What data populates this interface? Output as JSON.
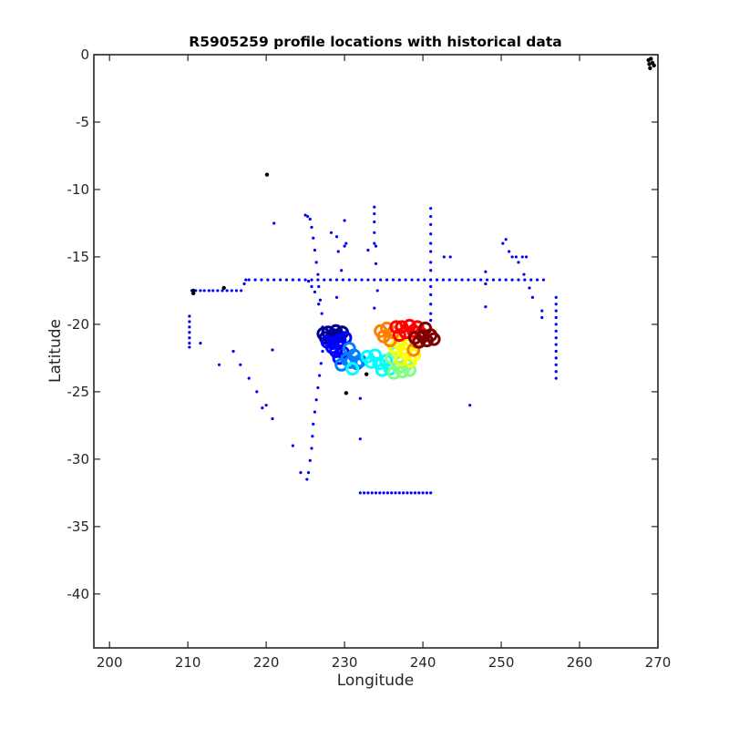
{
  "chart_data": {
    "type": "scatter",
    "title": "R5905259 profile locations with historical data",
    "xlabel": "Longitude",
    "ylabel": "Latitude",
    "xlim": [
      198,
      270
    ],
    "ylim": [
      -44,
      0
    ],
    "xticks": [
      200,
      210,
      220,
      230,
      240,
      250,
      260,
      270
    ],
    "yticks": [
      0,
      -5,
      -10,
      -15,
      -20,
      -25,
      -30,
      -35,
      -40
    ],
    "grid": false,
    "colors": {
      "historical": "#0000ff",
      "other": "#000000",
      "track_colormap": [
        "#00008f",
        "#0000ff",
        "#0080ff",
        "#00ffff",
        "#80ff80",
        "#ffff00",
        "#ff8000",
        "#ff0000",
        "#800000"
      ]
    },
    "series": [
      {
        "points": [
          [
            210.5,
            -17.5
          ],
          [
            211.0,
            -17.5
          ],
          [
            211.6,
            -17.5
          ],
          [
            212.1,
            -17.5
          ],
          [
            212.7,
            -17.5
          ],
          [
            213.2,
            -17.5
          ],
          [
            213.8,
            -17.5
          ],
          [
            214.4,
            -17.5
          ],
          [
            215.0,
            -17.5
          ],
          [
            215.6,
            -17.5
          ],
          [
            216.2,
            -17.5
          ],
          [
            216.8,
            -17.5
          ],
          [
            217.2,
            -17.0
          ],
          [
            217.4,
            -16.7
          ],
          [
            217.8,
            -16.7
          ],
          [
            218.6,
            -16.7
          ],
          [
            219.4,
            -16.7
          ],
          [
            220.2,
            -16.7
          ],
          [
            221.0,
            -16.7
          ],
          [
            221.8,
            -16.7
          ],
          [
            222.6,
            -16.7
          ],
          [
            223.4,
            -16.7
          ],
          [
            224.2,
            -16.7
          ],
          [
            225.0,
            -16.7
          ],
          [
            225.8,
            -16.7
          ],
          [
            226.6,
            -16.7
          ],
          [
            227.4,
            -16.7
          ],
          [
            228.2,
            -16.7
          ],
          [
            229.0,
            -16.7
          ],
          [
            229.8,
            -16.7
          ],
          [
            230.6,
            -16.7
          ],
          [
            231.4,
            -16.7
          ],
          [
            232.2,
            -16.7
          ],
          [
            233.0,
            -16.7
          ],
          [
            233.8,
            -16.7
          ],
          [
            234.6,
            -16.7
          ],
          [
            235.4,
            -16.7
          ],
          [
            236.2,
            -16.7
          ],
          [
            237.0,
            -16.7
          ],
          [
            237.8,
            -16.7
          ],
          [
            238.6,
            -16.7
          ],
          [
            239.4,
            -16.7
          ],
          [
            240.2,
            -16.7
          ],
          [
            241.0,
            -16.7
          ],
          [
            241.8,
            -16.7
          ],
          [
            242.6,
            -16.7
          ],
          [
            243.4,
            -16.7
          ],
          [
            244.2,
            -16.7
          ],
          [
            245.0,
            -16.7
          ],
          [
            245.8,
            -16.7
          ],
          [
            246.6,
            -16.7
          ],
          [
            247.4,
            -16.7
          ],
          [
            248.2,
            -16.7
          ],
          [
            249.0,
            -16.7
          ],
          [
            249.8,
            -16.7
          ],
          [
            250.6,
            -16.7
          ],
          [
            251.4,
            -16.7
          ],
          [
            252.2,
            -16.7
          ],
          [
            253.0,
            -16.7
          ],
          [
            253.8,
            -16.7
          ],
          [
            254.6,
            -16.7
          ],
          [
            255.4,
            -16.7
          ],
          [
            225.0,
            -11.9
          ],
          [
            225.3,
            -12.0
          ],
          [
            225.6,
            -12.2
          ],
          [
            225.8,
            -12.8
          ],
          [
            226.0,
            -13.6
          ],
          [
            226.2,
            -14.5
          ],
          [
            226.4,
            -15.4
          ],
          [
            226.6,
            -16.3
          ],
          [
            226.7,
            -17.2
          ],
          [
            226.9,
            -18.2
          ],
          [
            227.1,
            -19.2
          ],
          [
            227.2,
            -20.2
          ],
          [
            227.3,
            -21.1
          ],
          [
            227.2,
            -22.0
          ],
          [
            227.0,
            -22.9
          ],
          [
            226.8,
            -23.8
          ],
          [
            226.6,
            -24.7
          ],
          [
            226.4,
            -25.6
          ],
          [
            226.2,
            -26.5
          ],
          [
            226.0,
            -27.4
          ],
          [
            225.9,
            -28.3
          ],
          [
            225.8,
            -29.2
          ],
          [
            225.6,
            -30.1
          ],
          [
            225.4,
            -31.0
          ],
          [
            225.2,
            -31.5
          ],
          [
            225.4,
            -16.8
          ],
          [
            225.8,
            -17.2
          ],
          [
            226.2,
            -17.6
          ],
          [
            226.7,
            -18.5
          ],
          [
            210.2,
            -19.4
          ],
          [
            210.2,
            -19.8
          ],
          [
            210.2,
            -20.2
          ],
          [
            210.2,
            -20.6
          ],
          [
            210.2,
            -21.0
          ],
          [
            210.2,
            -21.4
          ],
          [
            210.2,
            -21.7
          ],
          [
            211.6,
            -21.4
          ],
          [
            214.0,
            -23.0
          ],
          [
            215.8,
            -22.0
          ],
          [
            216.7,
            -23.0
          ],
          [
            217.8,
            -24.0
          ],
          [
            218.8,
            -25.0
          ],
          [
            219.5,
            -26.2
          ],
          [
            220.0,
            -26.0
          ],
          [
            220.8,
            -27.0
          ],
          [
            220.8,
            -21.9
          ],
          [
            221.0,
            -12.5
          ],
          [
            223.4,
            -29.0
          ],
          [
            224.4,
            -31.0
          ],
          [
            228.3,
            -13.2
          ],
          [
            229.0,
            -13.5
          ],
          [
            229.2,
            -14.6
          ],
          [
            229.6,
            -16.0
          ],
          [
            230.0,
            -12.3
          ],
          [
            230.2,
            -14.0
          ],
          [
            230.0,
            -14.2
          ],
          [
            229.0,
            -20.8
          ],
          [
            230.2,
            -22.2
          ],
          [
            232.0,
            -28.5
          ],
          [
            232.0,
            -25.5
          ],
          [
            233.0,
            -14.5
          ],
          [
            229.0,
            -18.0
          ],
          [
            233.8,
            -11.3
          ],
          [
            233.8,
            -11.8
          ],
          [
            233.8,
            -12.4
          ],
          [
            233.8,
            -13.2
          ],
          [
            233.8,
            -14.0
          ],
          [
            234.0,
            -14.2
          ],
          [
            234.0,
            -15.5
          ],
          [
            234.2,
            -17.5
          ],
          [
            233.8,
            -18.8
          ],
          [
            241.0,
            -11.4
          ],
          [
            241.0,
            -12.0
          ],
          [
            241.0,
            -12.6
          ],
          [
            241.0,
            -13.3
          ],
          [
            241.0,
            -14.0
          ],
          [
            241.0,
            -14.6
          ],
          [
            241.0,
            -15.4
          ],
          [
            241.0,
            -16.0
          ],
          [
            241.0,
            -17.2
          ],
          [
            241.0,
            -17.8
          ],
          [
            241.0,
            -18.5
          ],
          [
            241.0,
            -19.2
          ],
          [
            241.0,
            -19.7
          ],
          [
            242.7,
            -15.0
          ],
          [
            243.5,
            -15.0
          ],
          [
            248.0,
            -16.1
          ],
          [
            248.0,
            -17.0
          ],
          [
            248.0,
            -18.7
          ],
          [
            250.2,
            -14.0
          ],
          [
            250.6,
            -13.7
          ],
          [
            251.0,
            -14.6
          ],
          [
            251.4,
            -15.0
          ],
          [
            251.9,
            -15.0
          ],
          [
            252.2,
            -15.4
          ],
          [
            252.7,
            -15.0
          ],
          [
            252.9,
            -16.3
          ],
          [
            253.2,
            -15.0
          ],
          [
            253.6,
            -17.3
          ],
          [
            254.0,
            -18.0
          ],
          [
            255.2,
            -19.0
          ],
          [
            255.2,
            -19.5
          ],
          [
            246.0,
            -26.0
          ],
          [
            257.0,
            -18.0
          ],
          [
            257.0,
            -18.5
          ],
          [
            257.0,
            -19.0
          ],
          [
            257.0,
            -19.5
          ],
          [
            257.0,
            -20.0
          ],
          [
            257.0,
            -20.5
          ],
          [
            257.0,
            -21.0
          ],
          [
            257.0,
            -21.5
          ],
          [
            257.0,
            -22.0
          ],
          [
            257.0,
            -22.5
          ],
          [
            257.0,
            -23.0
          ],
          [
            257.0,
            -23.5
          ],
          [
            257.0,
            -24.0
          ],
          [
            232.0,
            -32.5
          ],
          [
            232.5,
            -32.5
          ],
          [
            233.0,
            -32.5
          ],
          [
            233.5,
            -32.5
          ],
          [
            234.0,
            -32.5
          ],
          [
            234.5,
            -32.5
          ],
          [
            235.0,
            -32.5
          ],
          [
            235.5,
            -32.5
          ],
          [
            236.0,
            -32.5
          ],
          [
            236.5,
            -32.5
          ],
          [
            237.0,
            -32.5
          ],
          [
            237.5,
            -32.5
          ],
          [
            238.0,
            -32.5
          ],
          [
            238.5,
            -32.5
          ],
          [
            239.0,
            -32.5
          ],
          [
            239.5,
            -32.5
          ],
          [
            240.0,
            -32.5
          ],
          [
            240.5,
            -32.5
          ],
          [
            241.0,
            -32.5
          ]
        ]
      },
      {
        "points": [
          [
            220.1,
            -8.9
          ],
          [
            210.7,
            -17.5
          ],
          [
            210.7,
            -17.7
          ],
          [
            214.6,
            -17.3
          ],
          [
            230.2,
            -25.1
          ],
          [
            232.8,
            -23.7
          ],
          [
            268.8,
            -0.4
          ],
          [
            269.1,
            -0.3
          ],
          [
            269.3,
            -0.6
          ],
          [
            269.0,
            -1.0
          ],
          [
            269.5,
            -0.8
          ],
          [
            268.9,
            -0.7
          ]
        ]
      },
      {
        "points": [
          [
            227.3,
            -20.7
          ],
          [
            227.6,
            -21.0
          ],
          [
            227.9,
            -20.6
          ],
          [
            228.2,
            -21.1
          ],
          [
            228.6,
            -20.8
          ],
          [
            228.9,
            -20.5
          ],
          [
            229.3,
            -20.9
          ],
          [
            229.7,
            -20.6
          ],
          [
            230.1,
            -21.0
          ],
          [
            227.8,
            -21.3
          ],
          [
            228.5,
            -21.4
          ],
          [
            229.4,
            -21.2
          ],
          [
            228.4,
            -21.7
          ],
          [
            228.9,
            -22.0
          ],
          [
            229.3,
            -22.5
          ],
          [
            229.8,
            -22.1
          ],
          [
            230.3,
            -22.6
          ],
          [
            229.6,
            -23.0
          ],
          [
            230.8,
            -22.8
          ],
          [
            231.2,
            -22.3
          ],
          [
            231.6,
            -22.9
          ],
          [
            230.6,
            -21.8
          ],
          [
            232.0,
            -22.7
          ],
          [
            231.0,
            -23.3
          ],
          [
            232.9,
            -22.4
          ],
          [
            233.4,
            -22.8
          ],
          [
            233.9,
            -22.3
          ],
          [
            234.4,
            -22.9
          ],
          [
            234.8,
            -23.4
          ],
          [
            235.3,
            -22.7
          ],
          [
            235.8,
            -23.3
          ],
          [
            236.3,
            -23.6
          ],
          [
            236.9,
            -23.2
          ],
          [
            237.4,
            -23.5
          ],
          [
            237.9,
            -23.0
          ],
          [
            238.3,
            -23.4
          ],
          [
            236.0,
            -22.5
          ],
          [
            236.6,
            -22.1
          ],
          [
            237.2,
            -22.6
          ],
          [
            237.8,
            -22.2
          ],
          [
            238.4,
            -22.7
          ],
          [
            238.9,
            -22.3
          ],
          [
            236.4,
            -21.7
          ],
          [
            237.0,
            -21.4
          ],
          [
            237.6,
            -21.8
          ],
          [
            238.2,
            -21.5
          ],
          [
            238.8,
            -21.9
          ],
          [
            239.2,
            -21.3
          ],
          [
            234.6,
            -20.5
          ],
          [
            235.0,
            -20.9
          ],
          [
            235.4,
            -20.3
          ],
          [
            235.8,
            -21.2
          ],
          [
            236.2,
            -20.6
          ],
          [
            236.6,
            -20.2
          ],
          [
            237.0,
            -20.8
          ],
          [
            237.3,
            -20.2
          ],
          [
            237.8,
            -20.6
          ],
          [
            238.3,
            -20.1
          ],
          [
            238.8,
            -20.5
          ],
          [
            239.3,
            -20.2
          ],
          [
            239.8,
            -20.7
          ],
          [
            240.3,
            -20.3
          ],
          [
            239.0,
            -21.0
          ],
          [
            239.5,
            -21.3
          ],
          [
            240.0,
            -20.9
          ],
          [
            240.5,
            -21.2
          ],
          [
            241.0,
            -20.8
          ],
          [
            241.4,
            -21.1
          ]
        ]
      }
    ]
  }
}
